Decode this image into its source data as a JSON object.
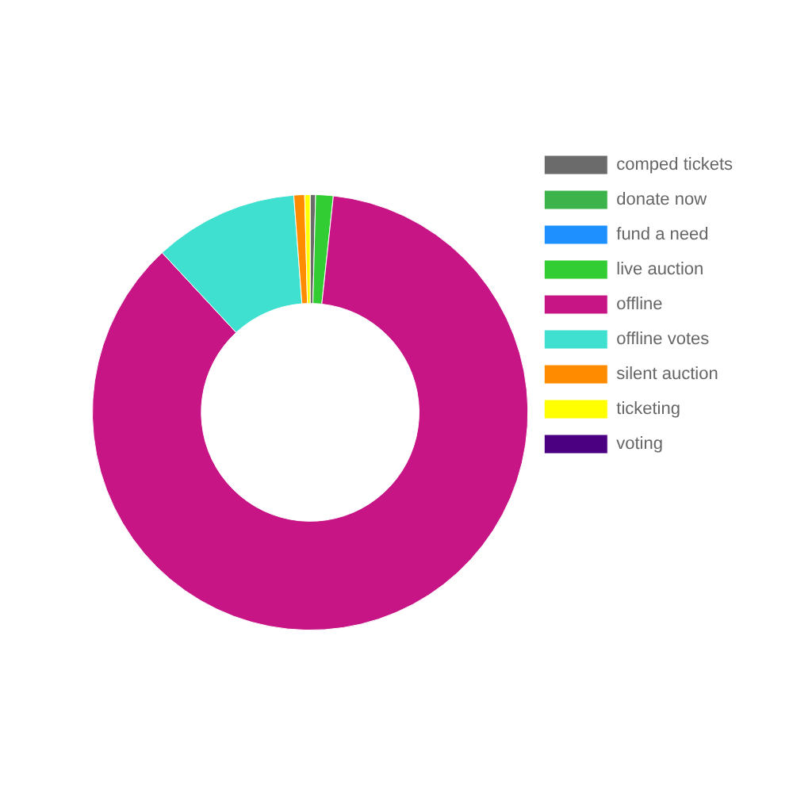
{
  "chart_data": {
    "type": "donut",
    "categories": [
      "comped tickets",
      "donate now",
      "fund a need",
      "live auction",
      "offline",
      "offline votes",
      "silent auction",
      "ticketing",
      "voting"
    ],
    "values": [
      0.4,
      0,
      0,
      1.3,
      86.4,
      10.7,
      0.8,
      0.4,
      0
    ],
    "colors": [
      "#6b6b6b",
      "#3cb44b",
      "#1e90ff",
      "#32cd32",
      "#c71585",
      "#40e0d0",
      "#ff8c00",
      "#ffff00",
      "#4b0082"
    ],
    "legend": "right"
  }
}
